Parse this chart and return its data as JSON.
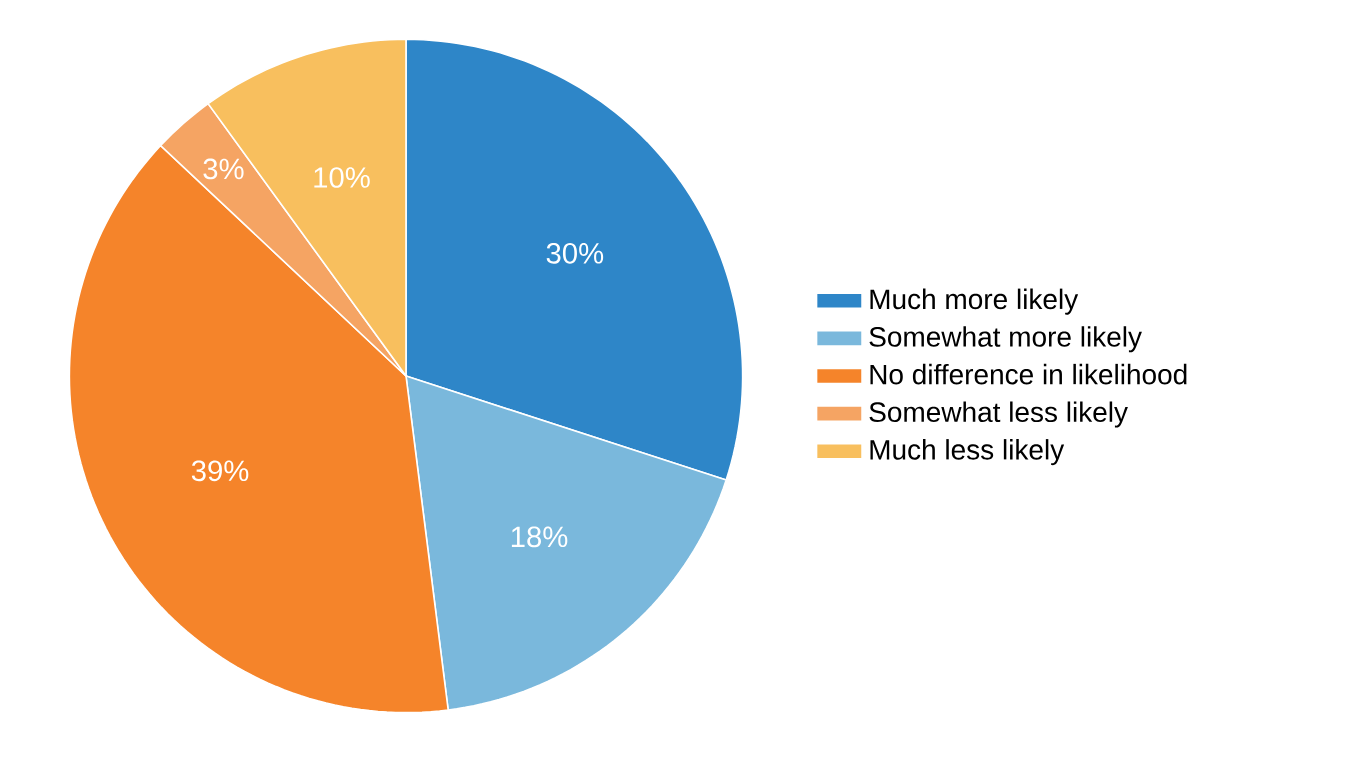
{
  "chart_data": {
    "type": "pie",
    "categories": [
      "Much more likely",
      "Somewhat more likely",
      "No difference in likelihood",
      "Somewhat less likely",
      "Much less likely"
    ],
    "values": [
      30,
      18,
      39,
      3,
      10
    ],
    "value_labels": [
      "30%",
      "18%",
      "39%",
      "3%",
      "10%"
    ],
    "colors": [
      "#2e86c8",
      "#7ab8dc",
      "#f5842a",
      "#f5a463",
      "#f8bf5e"
    ],
    "legend": "right"
  }
}
